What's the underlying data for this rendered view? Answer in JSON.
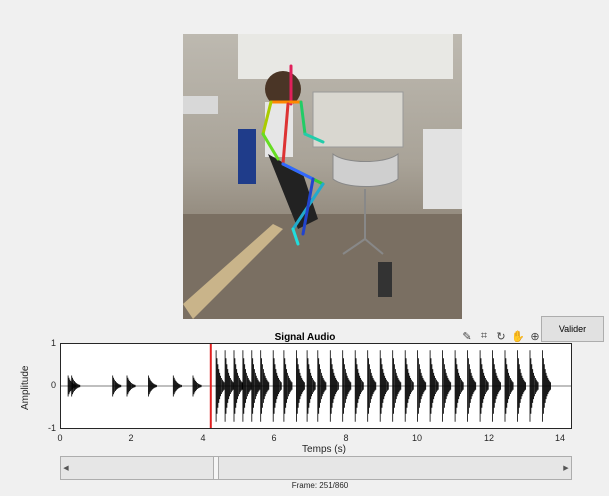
{
  "plot": {
    "title": "Signal Audio",
    "ylabel": "Amplitude",
    "xlabel": "Temps (s)",
    "yticks": [
      "1",
      "0",
      "-1"
    ],
    "xticks": [
      "0",
      "2",
      "4",
      "6",
      "8",
      "10",
      "12",
      "14"
    ]
  },
  "chart_data": {
    "type": "line",
    "title": "Signal Audio",
    "xlabel": "Temps (s)",
    "ylabel": "Amplitude",
    "xlim": [
      0,
      14.3
    ],
    "ylim": [
      -1,
      1
    ],
    "cursor_time": 4.2,
    "cursor_color": "#e02020",
    "signal_color": "#000000",
    "hit_times": [
      0.2,
      0.3,
      1.45,
      1.85,
      2.45,
      3.15,
      3.7,
      4.35,
      4.6,
      4.85,
      5.1,
      5.35,
      5.6,
      5.95,
      6.25,
      6.6,
      6.9,
      7.2,
      7.55,
      7.9,
      8.25,
      8.6,
      8.95,
      9.3,
      9.65,
      10.0,
      10.35,
      10.7,
      11.05,
      11.4,
      11.75,
      12.1,
      12.45,
      12.8,
      13.15,
      13.5
    ]
  },
  "toolbar": {
    "icons": [
      "brush-icon",
      "data-tip-icon",
      "rotate-icon",
      "pan-icon",
      "zoom-in-icon"
    ]
  },
  "validate_label": "Valider",
  "frame": {
    "label": "Frame: 251/860",
    "current": 251,
    "total": 860
  },
  "colors": {
    "background": "#f0f0f0",
    "axes_background": "#ffffff"
  }
}
